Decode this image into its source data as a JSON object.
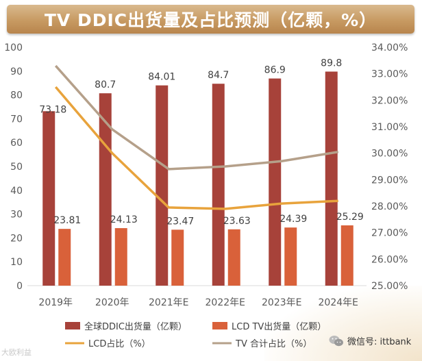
{
  "chart_data": {
    "type": "bar",
    "title": "TV DDIC出货量及占比预测（亿颗，%）",
    "categories": [
      "2019年",
      "2020年",
      "2021年E",
      "2022年E",
      "2023年E",
      "2024年E"
    ],
    "series": [
      {
        "name": "全球DDIC出货量（亿颗）",
        "type": "bar",
        "axis": "left",
        "color": "#a7423a",
        "values": [
          73.18,
          80.7,
          84.01,
          84.7,
          86.9,
          89.8
        ],
        "labels": [
          "73.18",
          "80.7",
          "84.01",
          "84.7",
          "86.9",
          "89.8"
        ]
      },
      {
        "name": "LCD TV出货量（亿颗）",
        "type": "bar",
        "axis": "left",
        "color": "#d9613a",
        "values": [
          23.81,
          24.13,
          23.47,
          23.63,
          24.39,
          25.29
        ],
        "labels": [
          "23.81",
          "24.13",
          "23.47",
          "23.63",
          "24.39",
          "25.29"
        ]
      },
      {
        "name": "LCD占比（%）",
        "type": "line",
        "axis": "right",
        "color": "#e8a33c",
        "values": [
          32.5,
          30.0,
          27.95,
          27.9,
          28.1,
          28.2
        ]
      },
      {
        "name": "TV 合计占比（%）",
        "type": "line",
        "axis": "right",
        "color": "#b5a08a",
        "values": [
          33.3,
          30.9,
          29.4,
          29.5,
          29.7,
          30.05
        ]
      }
    ],
    "left_axis": {
      "min": 0,
      "max": 100,
      "step": 10,
      "ticks": [
        "0",
        "10",
        "20",
        "30",
        "40",
        "50",
        "60",
        "70",
        "80",
        "90",
        "100"
      ]
    },
    "right_axis": {
      "min": 25,
      "max": 34,
      "step": 1,
      "ticks": [
        "25.00%",
        "26.00%",
        "27.00%",
        "28.00%",
        "29.00%",
        "30.00%",
        "31.00%",
        "32.00%",
        "33.00%",
        "34.00%"
      ]
    },
    "grid": false,
    "legend_position": "bottom"
  },
  "watermark": {
    "left": "大欧利益",
    "right": "微信号: ittbank"
  }
}
